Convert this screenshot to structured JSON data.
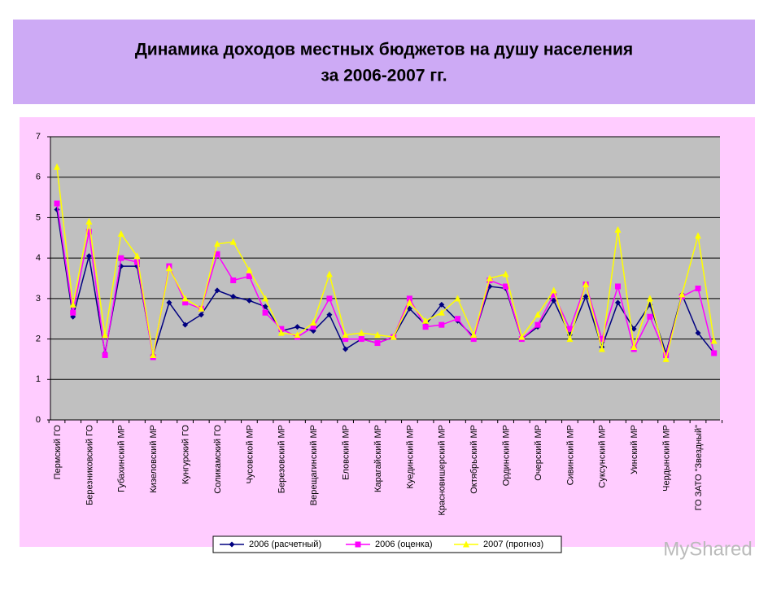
{
  "chart_data": {
    "type": "line",
    "title": [
      "Динамика доходов местных бюджетов на душу населения",
      "за 2006-2007 гг."
    ],
    "categories": [
      "Пермский ГО",
      null,
      "Березниковский ГО",
      null,
      "Губахинский МР",
      null,
      "Кизеловский МР",
      null,
      "Кунгурский ГО",
      null,
      "Соликамский ГО",
      null,
      "Чусовской МР",
      null,
      "Березовский МР",
      null,
      "Верещагинский МР",
      null,
      "Еловский МР",
      null,
      "Карагайский МР",
      null,
      "Куединский МР",
      null,
      "Красновишерский МР",
      null,
      "Октябрьский МР",
      null,
      "Ординский МР",
      null,
      "Очерский МР",
      null,
      "Сивинский МР",
      null,
      "Суксунский МР",
      null,
      "Уинский МР",
      null,
      "Чердынский МР",
      null,
      "ГО ЗАТО \"Звездный\"",
      null
    ],
    "series": [
      {
        "name": "2006 (расчетный)",
        "color": "#000080",
        "marker": "diamond",
        "values": [
          5.2,
          2.55,
          4.05,
          1.65,
          3.8,
          3.8,
          1.6,
          2.9,
          2.35,
          2.6,
          3.2,
          3.05,
          2.95,
          2.8,
          2.2,
          2.3,
          2.2,
          2.6,
          1.75,
          2.0,
          1.9,
          2.05,
          2.75,
          2.35,
          2.85,
          2.45,
          2.05,
          3.3,
          3.25,
          2.0,
          2.3,
          2.95,
          2.1,
          3.05,
          1.8,
          2.9,
          2.25,
          2.85,
          1.65,
          3.1,
          2.15,
          1.65
        ]
      },
      {
        "name": "2006 (оценка)",
        "color": "#ff00ff",
        "marker": "square",
        "values": [
          5.35,
          2.65,
          4.65,
          1.6,
          4.0,
          3.9,
          1.55,
          3.8,
          2.9,
          2.75,
          4.1,
          3.45,
          3.55,
          2.65,
          2.25,
          2.05,
          2.3,
          3.0,
          2.0,
          2.0,
          1.9,
          2.05,
          3.0,
          2.3,
          2.35,
          2.5,
          2.0,
          3.45,
          3.3,
          2.0,
          2.35,
          3.1,
          2.25,
          3.35,
          2.0,
          3.3,
          1.75,
          2.55,
          1.6,
          3.05,
          3.25,
          1.65
        ]
      },
      {
        "name": "2007 (прогноз)",
        "color": "#ffff00",
        "marker": "triangle",
        "values": [
          6.25,
          2.85,
          4.9,
          2.1,
          4.6,
          4.05,
          1.6,
          3.75,
          3.0,
          2.75,
          4.35,
          4.4,
          3.7,
          3.0,
          2.15,
          2.1,
          2.4,
          3.6,
          2.1,
          2.15,
          2.1,
          2.05,
          2.9,
          2.45,
          2.65,
          3.0,
          2.1,
          3.5,
          3.6,
          2.05,
          2.6,
          3.2,
          2.0,
          3.35,
          1.75,
          4.7,
          1.8,
          3.0,
          1.5,
          3.1,
          4.55,
          1.95
        ]
      }
    ],
    "ylim": [
      0,
      7
    ],
    "yticks": [
      0,
      1,
      2,
      3,
      4,
      5,
      6,
      7
    ],
    "grid": true,
    "legend": "bottom",
    "watermark": "MyShared"
  }
}
